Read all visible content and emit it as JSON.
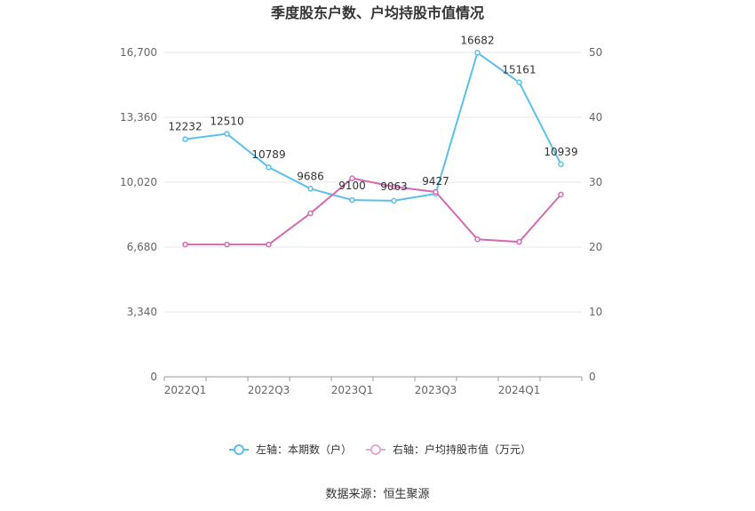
{
  "chart_data": {
    "type": "line",
    "title": "季度股东户数、户均持股市值情况",
    "categories": [
      "2022Q1",
      "2022Q2",
      "2022Q3",
      "2022Q4",
      "2023Q1",
      "2023Q2",
      "2023Q3",
      "2023Q4",
      "2024Q1",
      "2024Q2"
    ],
    "x_tick_labels": [
      "2022Q1",
      "2022Q3",
      "2023Q1",
      "2023Q3",
      "2024Q1"
    ],
    "left_axis": {
      "ticks": [
        "0",
        "3,340",
        "6,680",
        "10,020",
        "13,360",
        "16,700"
      ],
      "range": [
        0,
        16700
      ]
    },
    "right_axis": {
      "ticks": [
        "0",
        "10",
        "20",
        "30",
        "40",
        "50"
      ],
      "range": [
        0,
        50
      ]
    },
    "series": [
      {
        "name": "左轴：本期数（户）",
        "axis": "left",
        "color": "#5bc0eb",
        "values": [
          12232,
          12510,
          10789,
          9686,
          9100,
          9063,
          9427,
          16682,
          15161,
          10939
        ],
        "labels": [
          "12232",
          "12510",
          "10789",
          "9686",
          "9100",
          "9063",
          "9427",
          "16682",
          "15161",
          "10939"
        ]
      },
      {
        "name": "右轴：户均持股市值（万元）",
        "axis": "right",
        "color": "#d36bb5",
        "values": [
          20.4,
          20.4,
          20.4,
          25.2,
          30.6,
          29.3,
          28.5,
          21.2,
          20.8,
          28.1
        ]
      }
    ],
    "grid": true,
    "legend_position": "bottom-center"
  },
  "source": "数据来源：恒生聚源"
}
